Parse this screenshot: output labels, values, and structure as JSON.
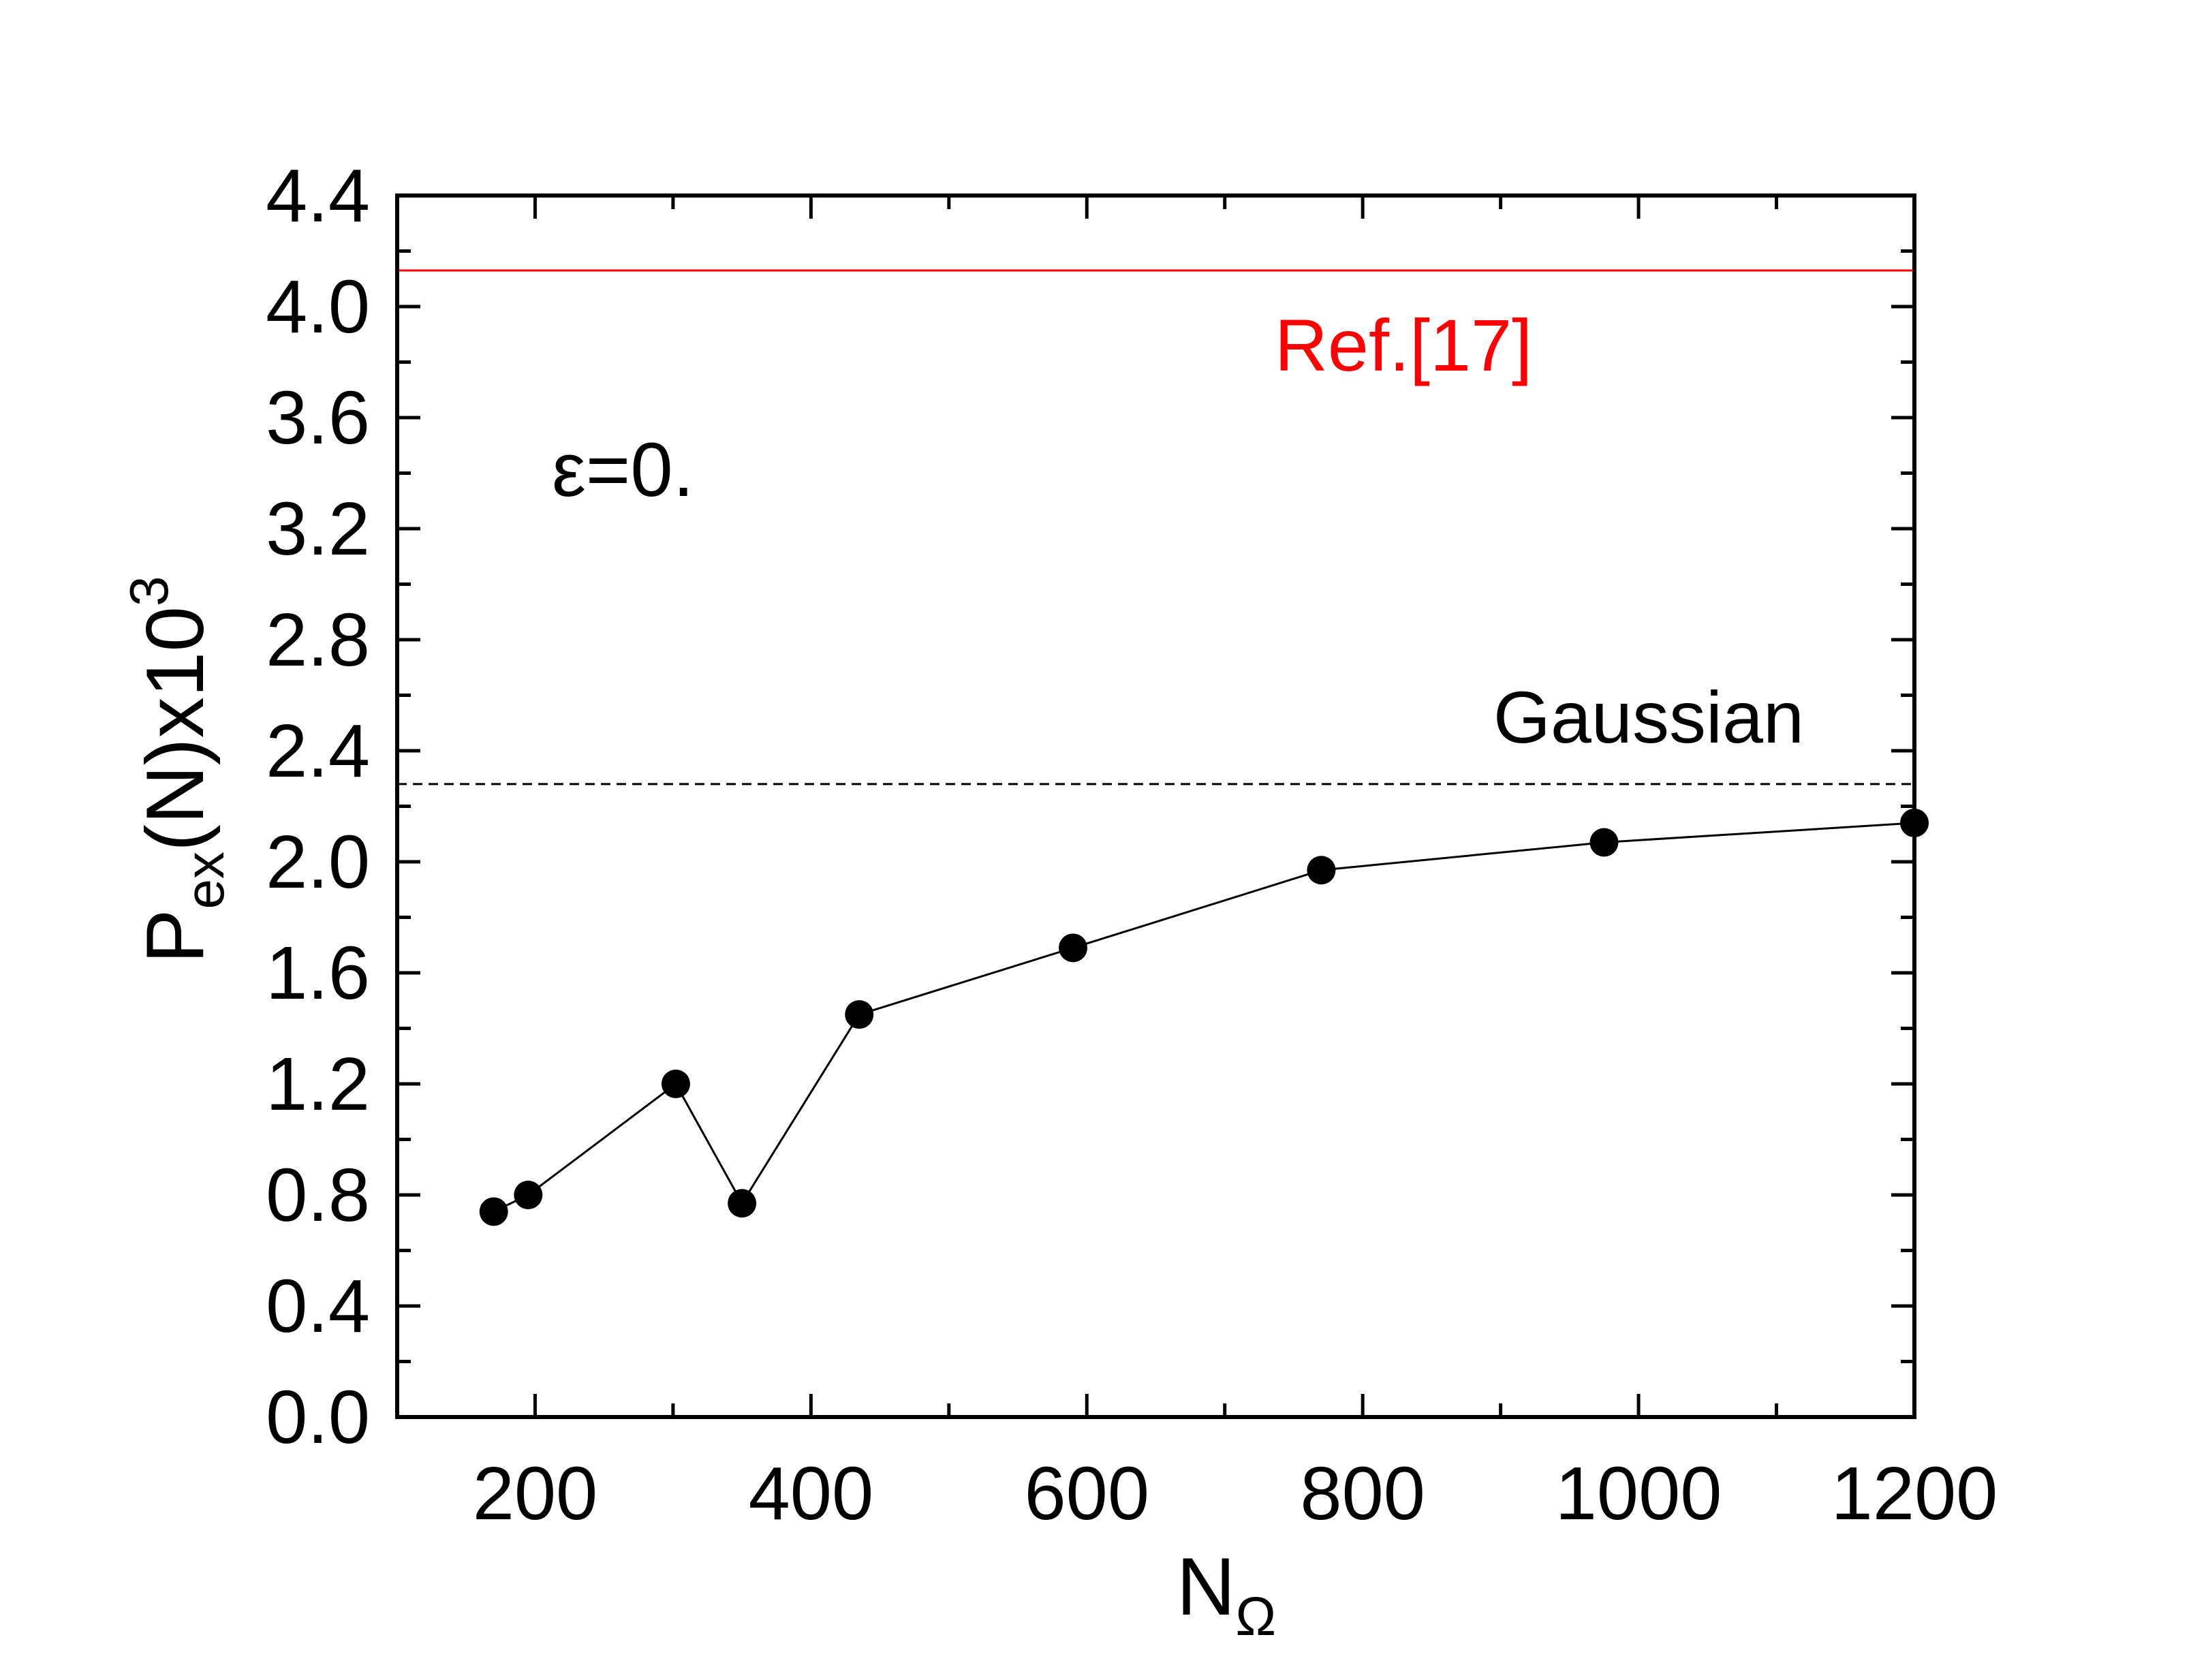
{
  "chart_data": {
    "type": "line",
    "xlabel": {
      "base": "N",
      "sub": "Ω"
    },
    "ylabel": {
      "pre": "P",
      "sub": "ex",
      "mid": "(N)x10",
      "sup": "3"
    },
    "xlim": [
      100,
      1200
    ],
    "ylim": [
      0.0,
      4.4
    ],
    "x_ticks": [
      "200",
      "400",
      "600",
      "800",
      "1000",
      "1200"
    ],
    "x_tick_values": [
      200,
      400,
      600,
      800,
      1000,
      1200
    ],
    "y_ticks": [
      "0.0",
      "0.4",
      "0.8",
      "1.2",
      "1.6",
      "2.0",
      "2.4",
      "2.8",
      "3.2",
      "3.6",
      "4.0",
      "4.4"
    ],
    "y_tick_values": [
      0.0,
      0.4,
      0.8,
      1.2,
      1.6,
      2.0,
      2.4,
      2.8,
      3.2,
      3.6,
      4.0,
      4.4
    ],
    "series": [
      {
        "x": [
          170,
          195,
          302,
          350,
          435,
          590,
          770,
          975,
          1200
        ],
        "y": [
          0.74,
          0.8,
          1.2,
          0.77,
          1.45,
          1.69,
          1.97,
          2.07,
          2.14
        ],
        "color": "#000000"
      }
    ],
    "reference_lines": [
      {
        "label": "Ref.[17]",
        "y": 4.13,
        "color": "#ff0000",
        "style": "solid"
      },
      {
        "label": "Gaussian",
        "y": 2.28,
        "color": "#000000",
        "style": "dashed"
      }
    ],
    "annotations": [
      {
        "text": "ε=0."
      }
    ],
    "grid": false,
    "legend": "none"
  }
}
